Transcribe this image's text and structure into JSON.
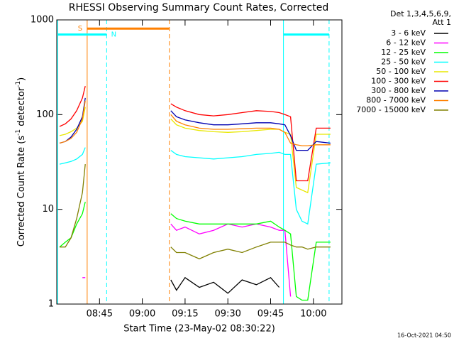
{
  "chart_data": {
    "type": "line",
    "title": "RHESSI Observing Summary Count Rates, Corrected",
    "xlabel": "Start Time (23-May-02 08:30:22)",
    "ylabel_parts": [
      "Corrected Count Rate (s",
      "-1",
      " detector",
      "-1",
      ")"
    ],
    "footer": "16-Oct-2021 04:50",
    "legend_title": [
      "Det 1,3,4,5,6,9,",
      "Att 1"
    ],
    "legend": "outside-right",
    "log_y": true,
    "xlim": [
      "08:30",
      "10:10"
    ],
    "xticks": [
      "08:45",
      "09:00",
      "09:15",
      "09:30",
      "09:45",
      "10:00"
    ],
    "ylim": [
      1,
      1000
    ],
    "yticks": [
      1,
      10,
      100,
      1000
    ],
    "x": [
      "08:31",
      "08:33",
      "08:35",
      "08:37",
      "08:39",
      "08:40",
      "08:50",
      "09:10",
      "09:12",
      "09:15",
      "09:20",
      "09:25",
      "09:30",
      "09:35",
      "09:40",
      "09:45",
      "09:48",
      "09:50",
      "09:52",
      "09:54",
      "09:56",
      "09:58",
      "10:01",
      "10:06"
    ],
    "series": [
      {
        "name": "3 - 6 keV",
        "color": "#000000",
        "values": [
          null,
          null,
          null,
          null,
          null,
          null,
          null,
          1.8,
          1.4,
          1.9,
          1.5,
          1.7,
          1.3,
          1.8,
          1.6,
          1.9,
          1.5,
          null,
          null,
          null,
          null,
          null,
          null,
          null
        ]
      },
      {
        "name": "6 - 12 keV",
        "color": "#ff00ff",
        "values": [
          null,
          null,
          null,
          null,
          1.9,
          1.9,
          null,
          7,
          6,
          6.5,
          5.5,
          6,
          7,
          6.5,
          7,
          6.5,
          6,
          6,
          1.2,
          null,
          null,
          null,
          null,
          null
        ]
      },
      {
        "name": "12 - 25 keV",
        "color": "#00ff00",
        "values": [
          4,
          4.5,
          5,
          7,
          9,
          12,
          null,
          9,
          8,
          7.5,
          7,
          7,
          7,
          7,
          7,
          7.5,
          6.5,
          6,
          5.5,
          1.2,
          1.1,
          1.1,
          4.5,
          4.5
        ]
      },
      {
        "name": "25 - 50 keV",
        "color": "#00ffff",
        "values": [
          30,
          31,
          32,
          34,
          38,
          45,
          null,
          42,
          38,
          36,
          35,
          34,
          35,
          36,
          38,
          39,
          40,
          38,
          38,
          10,
          7.5,
          7,
          30,
          31
        ]
      },
      {
        "name": "50 - 100 keV",
        "color": "#e8e800",
        "values": [
          60,
          62,
          66,
          72,
          85,
          120,
          null,
          90,
          78,
          72,
          68,
          66,
          65,
          66,
          68,
          70,
          70,
          65,
          62,
          17,
          16,
          15,
          62,
          62
        ]
      },
      {
        "name": "100 - 300 keV",
        "color": "#ff0000",
        "values": [
          75,
          80,
          90,
          110,
          150,
          200,
          null,
          130,
          120,
          110,
          100,
          97,
          100,
          105,
          110,
          108,
          105,
          100,
          95,
          20,
          20,
          20,
          72,
          72
        ]
      },
      {
        "name": "300 - 800 keV",
        "color": "#0000b0",
        "values": [
          50,
          52,
          58,
          70,
          95,
          150,
          null,
          110,
          95,
          88,
          82,
          78,
          78,
          80,
          82,
          82,
          80,
          78,
          60,
          42,
          42,
          42,
          52,
          50
        ]
      },
      {
        "name": "800 - 7000 keV",
        "color": "#ff8000",
        "values": [
          50,
          52,
          56,
          65,
          90,
          140,
          null,
          100,
          85,
          78,
          72,
          70,
          70,
          71,
          72,
          72,
          70,
          65,
          50,
          48,
          47,
          47,
          48,
          48
        ]
      },
      {
        "name": "7000 - 15000 keV",
        "color": "#808000",
        "values": [
          4,
          4,
          5,
          8,
          15,
          30,
          null,
          4,
          3.5,
          3.5,
          3,
          3.5,
          3.8,
          3.5,
          4,
          4.5,
          4.5,
          4.5,
          4.2,
          4,
          4,
          3.8,
          4,
          4
        ]
      }
    ],
    "vlines": [
      {
        "x": "08:30:22",
        "color": "#00ffff",
        "dashed": false
      },
      {
        "x": "08:40:40",
        "color": "#ff8000",
        "dashed": false
      },
      {
        "x": "08:47:30",
        "color": "#00ffff",
        "dashed": true
      },
      {
        "x": "09:09:30",
        "color": "#ff8000",
        "dashed": true
      },
      {
        "x": "09:49:30",
        "color": "#00ffff",
        "dashed": false
      },
      {
        "x": "10:05:30",
        "color": "#00ffff",
        "dashed": true
      }
    ],
    "bars": [
      {
        "from": "08:30:22",
        "to": "08:47:30",
        "value": 700,
        "color": "#00ffff",
        "label": "N",
        "label_at": "end"
      },
      {
        "from": "08:40:40",
        "to": "09:09:30",
        "value": 810,
        "color": "#ff8000",
        "label": "S",
        "label_at": "start"
      },
      {
        "from": "09:49:30",
        "to": "10:05:30",
        "value": 700,
        "color": "#00ffff"
      }
    ]
  }
}
